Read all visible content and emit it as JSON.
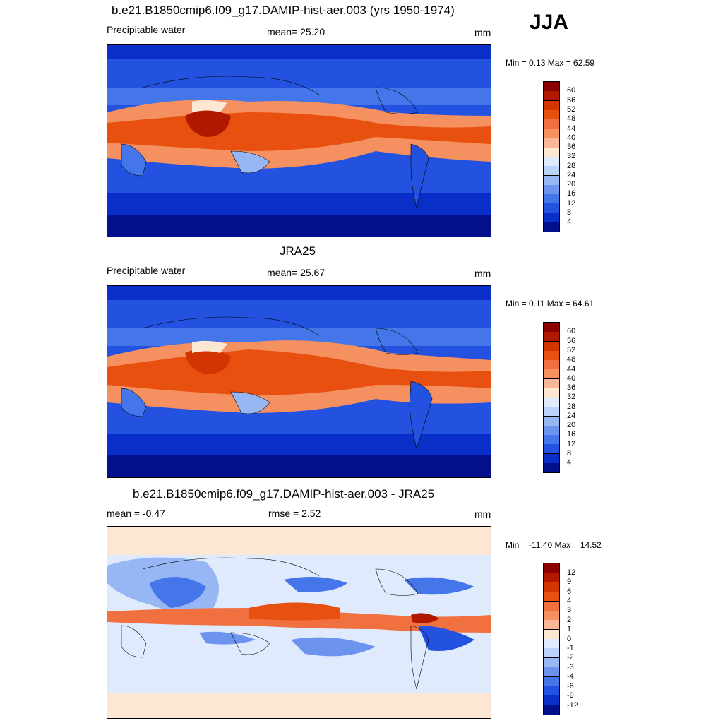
{
  "season": "JJA",
  "panels": [
    {
      "title": "b.e21.B1850cmip6.f09_g17.DAMIP-hist-aer.003 (yrs 1950-1974)",
      "left": "Precipitable water",
      "center": "mean=  25.20",
      "units": "mm",
      "minmax": "Min =   0.13 Max =  62.59"
    },
    {
      "title": "JRA25",
      "left": "Precipitable water",
      "center": "mean=  25.67",
      "units": "mm",
      "minmax": "Min =   0.11 Max =  64.61"
    },
    {
      "title": "b.e21.B1850cmip6.f09_g17.DAMIP-hist-aer.003 - JRA25",
      "left": "mean =  -0.47",
      "center": "rmse =   2.52",
      "units": "mm",
      "minmax": "Min = -11.40 Max =  14.52"
    }
  ],
  "colorbar_abs": {
    "labels": [
      "60",
      "56",
      "52",
      "48",
      "44",
      "40",
      "36",
      "32",
      "28",
      "24",
      "20",
      "16",
      "12",
      "8",
      "4"
    ],
    "colors": [
      "#8b0000",
      "#b01800",
      "#d33400",
      "#e85010",
      "#f07040",
      "#f59060",
      "#f8b898",
      "#fde6d2",
      "#dfeafc",
      "#bcd4fa",
      "#97b6f4",
      "#6c94ee",
      "#4476ea",
      "#2452e0",
      "#0a2fc8",
      "#02108c"
    ]
  },
  "colorbar_diff": {
    "labels": [
      "12",
      "9",
      "6",
      "4",
      "3",
      "2",
      "1",
      "0",
      "-1",
      "-2",
      "-3",
      "-4",
      "-6",
      "-9",
      "-12"
    ],
    "colors": [
      "#8b0000",
      "#b01800",
      "#d33400",
      "#e85010",
      "#f07040",
      "#f59060",
      "#f8b898",
      "#fde6d2",
      "#dfeafc",
      "#bcd4fa",
      "#97b6f4",
      "#6c94ee",
      "#4476ea",
      "#2452e0",
      "#0a2fc8",
      "#02108c"
    ]
  }
}
